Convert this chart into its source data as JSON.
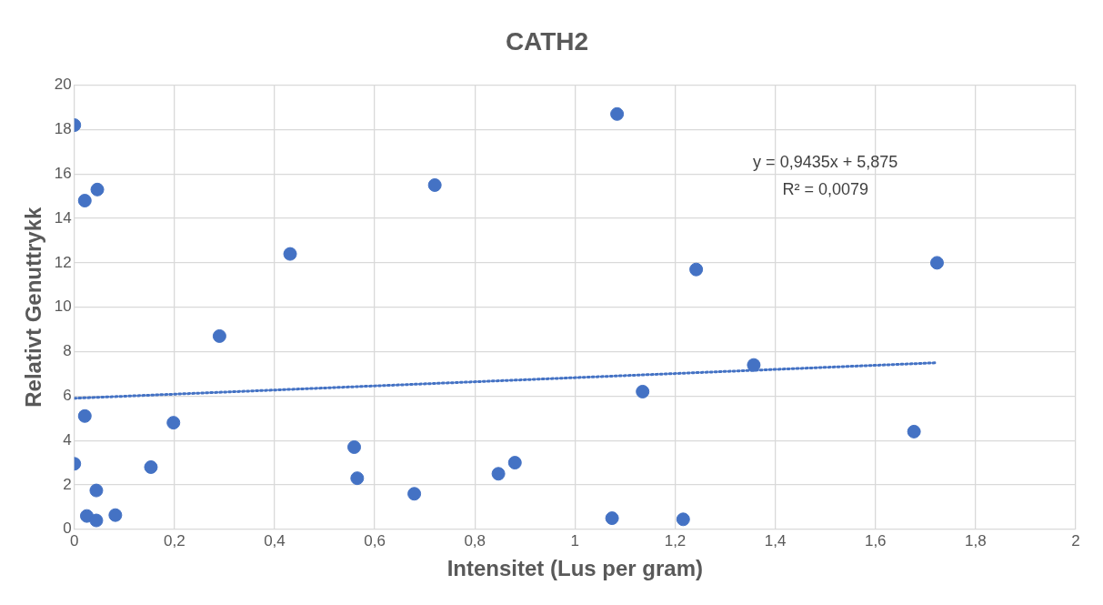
{
  "chart_data": {
    "type": "scatter",
    "title": "CATH2",
    "xlabel": "Intensitet (Lus per gram)",
    "ylabel": "Relativt Genuttrykk",
    "series": [
      {
        "type": "scatter",
        "color": "#4472c4",
        "x": [
          0,
          0,
          0.021,
          0.046,
          0.021,
          0.044,
          0.025,
          0.044,
          0.082,
          0.153,
          0.198,
          0.29,
          0.431,
          0.559,
          0.565,
          0.679,
          0.72,
          0.847,
          0.88,
          1.074,
          1.084,
          1.135,
          1.216,
          1.242,
          1.357,
          1.677,
          1.723
        ],
        "values": [
          18.2,
          2.95,
          14.8,
          15.3,
          5.1,
          1.75,
          0.6,
          0.4,
          0.64,
          2.8,
          4.8,
          8.7,
          12.4,
          3.7,
          2.3,
          1.6,
          15.5,
          2.5,
          3.0,
          0.5,
          18.7,
          6.2,
          0.45,
          11.7,
          7.4,
          4.4,
          12.0
        ]
      },
      {
        "type": "line",
        "color": "#4472c4",
        "line_style": "dotted",
        "marker": "none",
        "x": [
          0,
          1.723
        ],
        "values": [
          5.9,
          7.5
        ]
      }
    ],
    "xlim": [
      0,
      2
    ],
    "xticks": [
      0,
      {
        "value": 0.2,
        "label": "0,2"
      },
      {
        "value": 0.4,
        "label": "0,4"
      },
      {
        "value": 0.6,
        "label": "0,6"
      },
      {
        "value": 0.8,
        "label": "0,8"
      },
      1,
      {
        "value": 1.2,
        "label": "1,2"
      },
      {
        "value": 1.4,
        "label": "1,4"
      },
      {
        "value": 1.6,
        "label": "1,6"
      },
      {
        "value": 1.8,
        "label": "1,8"
      },
      2
    ],
    "ylim": [
      0,
      20
    ],
    "yticks": [
      0,
      2,
      4,
      6,
      8,
      10,
      12,
      14,
      16,
      18,
      20
    ],
    "annotations": [
      "y = 0,9435x + 5,875",
      "R² = 0,0079"
    ],
    "grid": true,
    "legend": false,
    "marker": "circle"
  }
}
